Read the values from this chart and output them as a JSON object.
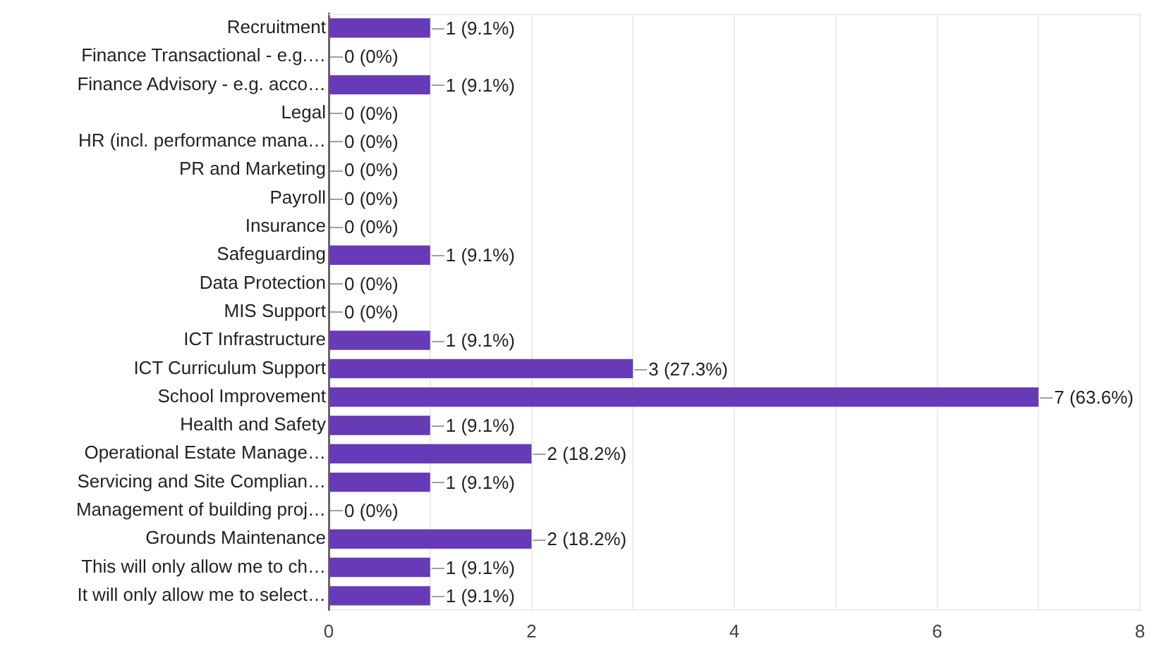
{
  "chart_data": {
    "type": "bar",
    "orientation": "horizontal",
    "categories": [
      "Recruitment",
      "Finance Transactional - e.g.…",
      "Finance Advisory - e.g. acco…",
      "Legal",
      "HR (incl. performance mana…",
      "PR and Marketing",
      "Payroll",
      "Insurance",
      "Safeguarding",
      "Data Protection",
      "MIS Support",
      "ICT Infrastructure",
      "ICT Curriculum Support",
      "School Improvement",
      "Health and Safety",
      "Operational Estate Manage…",
      "Servicing and Site Complian…",
      "Management of building proj…",
      "Grounds Maintenance",
      "This will only allow me to ch…",
      "It will only allow me to select…"
    ],
    "values": [
      1,
      0,
      1,
      0,
      0,
      0,
      0,
      0,
      1,
      0,
      0,
      1,
      3,
      7,
      1,
      2,
      1,
      0,
      2,
      1,
      1
    ],
    "value_labels": [
      "1 (9.1%)",
      "0 (0%)",
      "1 (9.1%)",
      "0 (0%)",
      "0 (0%)",
      "0 (0%)",
      "0 (0%)",
      "0 (0%)",
      "1 (9.1%)",
      "0 (0%)",
      "0 (0%)",
      "1 (9.1%)",
      "3 (27.3%)",
      "7 (63.6%)",
      "1 (9.1%)",
      "2 (18.2%)",
      "1 (9.1%)",
      "0 (0%)",
      "2 (18.2%)",
      "1 (9.1%)",
      "1 (9.1%)"
    ],
    "color": "#673ab7",
    "xlim": [
      0,
      8
    ],
    "xticks": [
      0,
      {
        "value": 1,
        "label": null
      },
      2,
      {
        "value": 3,
        "label": null
      },
      4,
      {
        "value": 5,
        "label": null
      },
      6,
      {
        "value": 7,
        "label": null
      },
      8
    ],
    "grid": "x"
  }
}
